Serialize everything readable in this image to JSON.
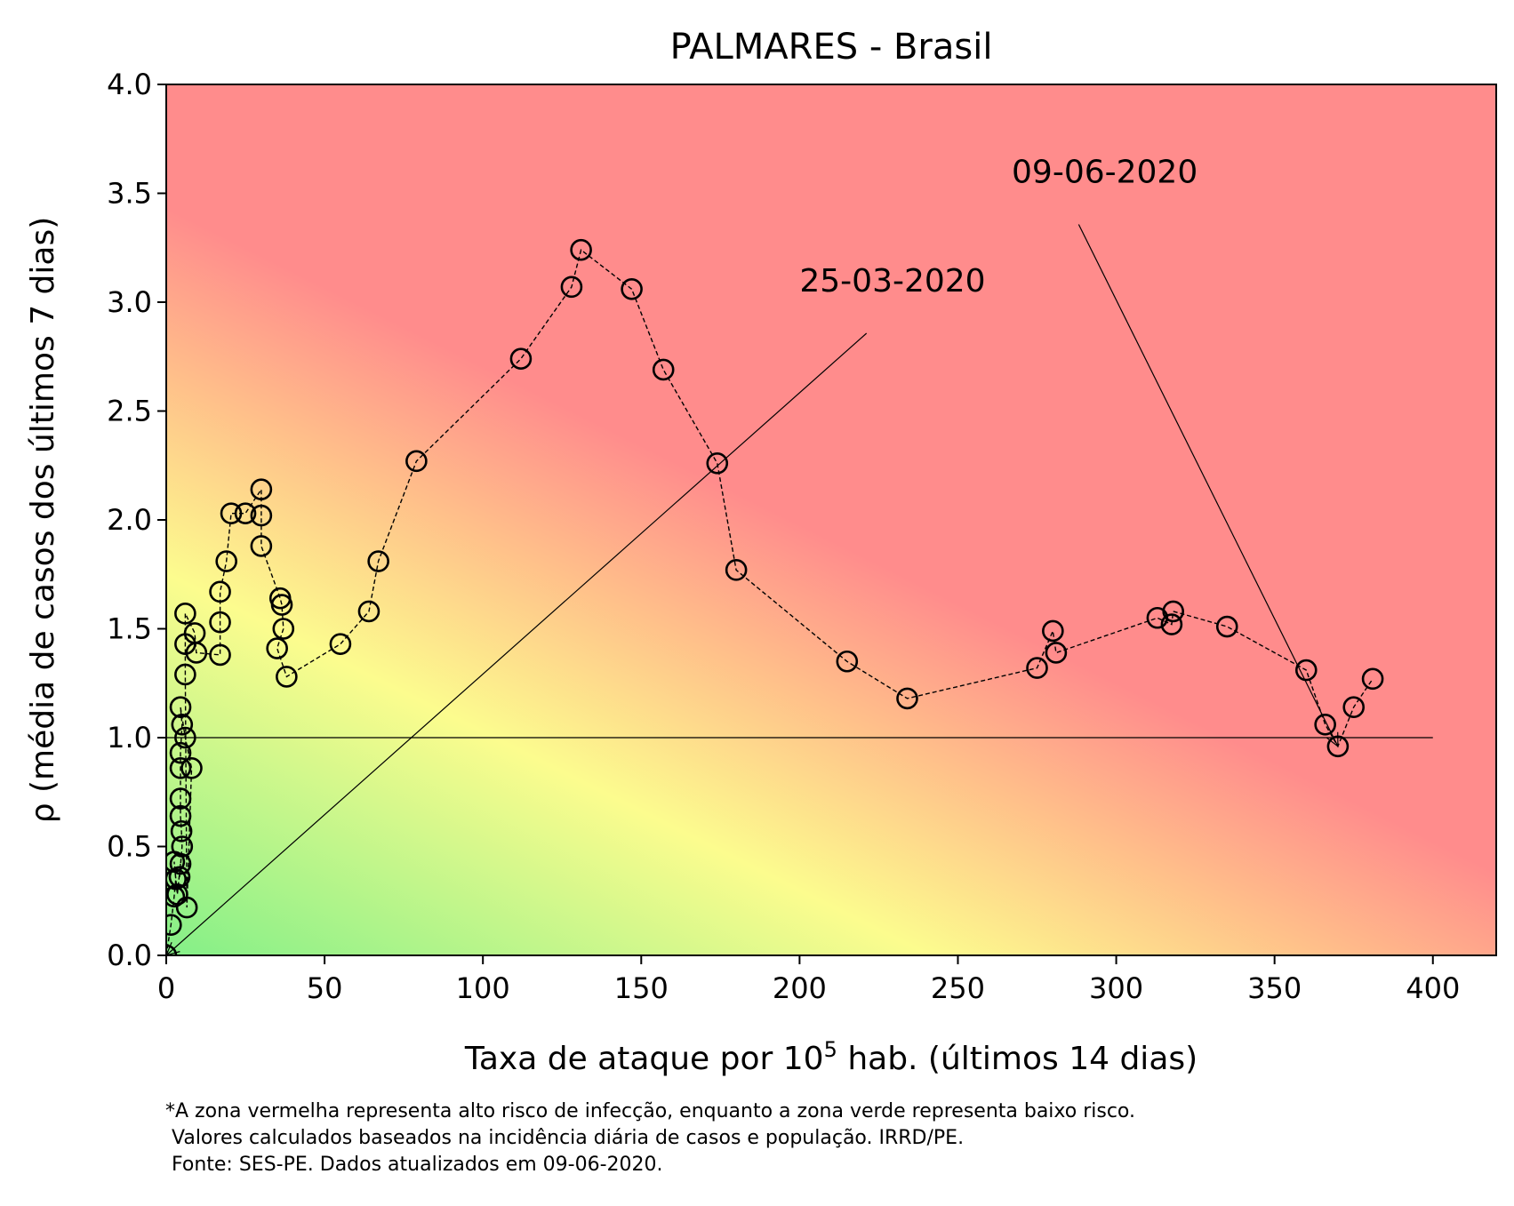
{
  "chart_data": {
    "type": "scatter",
    "title": "PALMARES - Brasil",
    "xlabel_prefix": "Taxa de ataque por 10",
    "xlabel_sup": "5",
    "xlabel_suffix": " hab. (últimos 14 dias)",
    "ylabel": "ρ (média de casos dos últimos 7 dias)",
    "xlim": [
      0,
      420
    ],
    "ylim": [
      0,
      4
    ],
    "xticks": [
      0,
      50,
      100,
      150,
      200,
      250,
      300,
      350,
      400
    ],
    "yticks": [
      0.0,
      0.5,
      1.0,
      1.5,
      2.0,
      2.5,
      3.0,
      3.5,
      4.0
    ],
    "background": "risk gradient: green (low) → yellow → red (high)",
    "colors": {
      "green": "#88f088",
      "yellow": "#fcfc8e",
      "orange": "#ffbe8a",
      "red": "#ff8c8c"
    },
    "reference_line": {
      "y": 1.0,
      "x_range": [
        0,
        400
      ]
    },
    "series": [
      {
        "marker": "open circle",
        "line": "dashed",
        "points": [
          [
            0,
            0.0
          ],
          [
            1.5,
            0.14
          ],
          [
            2.5,
            0.27
          ],
          [
            3.0,
            0.35
          ],
          [
            2.5,
            0.43
          ],
          [
            3.5,
            0.28
          ],
          [
            4.5,
            0.42
          ],
          [
            4.2,
            0.36
          ],
          [
            5.0,
            0.5
          ],
          [
            4.8,
            0.57
          ],
          [
            4.5,
            0.64
          ],
          [
            4.5,
            0.72
          ],
          [
            4.5,
            0.86
          ],
          [
            4.5,
            0.93
          ],
          [
            5.0,
            1.06
          ],
          [
            4.5,
            1.14
          ],
          [
            6.0,
            1.0
          ],
          [
            8.0,
            0.86
          ],
          [
            6.5,
            0.22
          ],
          [
            6.0,
            1.29
          ],
          [
            6.0,
            1.43
          ],
          [
            6.0,
            1.57
          ],
          [
            9.0,
            1.48
          ],
          [
            9.5,
            1.39
          ],
          [
            17.0,
            1.38
          ],
          [
            17.0,
            1.53
          ],
          [
            17.0,
            1.67
          ],
          [
            19.0,
            1.81
          ],
          [
            20.5,
            2.03
          ],
          [
            25.0,
            2.03
          ],
          [
            30.0,
            2.14
          ],
          [
            30.0,
            2.02
          ],
          [
            30.0,
            1.88
          ],
          [
            36.0,
            1.64
          ],
          [
            36.5,
            1.61
          ],
          [
            37.0,
            1.5
          ],
          [
            35.0,
            1.41
          ],
          [
            38.0,
            1.28
          ],
          [
            55.0,
            1.43
          ],
          [
            64.0,
            1.58
          ],
          [
            67.0,
            1.81
          ],
          [
            79.0,
            2.27
          ],
          [
            112.0,
            2.74
          ],
          [
            128.0,
            3.07
          ],
          [
            131.0,
            3.24
          ],
          [
            147.0,
            3.06
          ],
          [
            157.0,
            2.69
          ],
          [
            174.0,
            2.26
          ],
          [
            180.0,
            1.77
          ],
          [
            215.0,
            1.35
          ],
          [
            234.0,
            1.18
          ],
          [
            275.0,
            1.32
          ],
          [
            280.0,
            1.49
          ],
          [
            281.0,
            1.39
          ],
          [
            313.0,
            1.55
          ],
          [
            317.5,
            1.52
          ],
          [
            318.0,
            1.58
          ],
          [
            335.0,
            1.51
          ],
          [
            360.0,
            1.31
          ],
          [
            366.0,
            1.06
          ],
          [
            370.0,
            0.96
          ],
          [
            375.0,
            1.14
          ],
          [
            381.0,
            1.27
          ]
        ]
      }
    ],
    "annotations": [
      {
        "text": "25-03-2020",
        "text_at": [
          200,
          3.0
        ],
        "arrow_to": [
          0,
          0.0
        ]
      },
      {
        "text": "09-06-2020",
        "text_at": [
          267,
          3.5
        ],
        "arrow_to": [
          370,
          0.96
        ]
      }
    ]
  },
  "footnote": {
    "line1": "*A zona vermelha representa alto risco de infecção, enquanto a zona verde representa baixo risco.",
    "line2": " Valores calculados baseados na incidência diária de casos e população. IRRD/PE.",
    "line3": " Fonte: SES-PE. Dados atualizados em 09-06-2020."
  }
}
